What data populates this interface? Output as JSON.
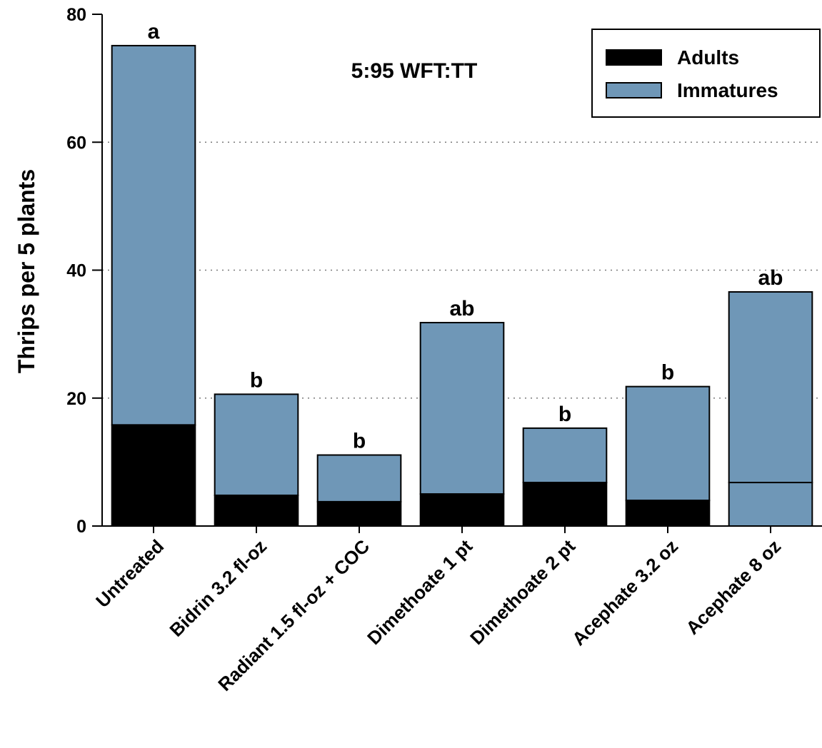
{
  "chart_data": {
    "type": "bar",
    "stacked": true,
    "categories": [
      "Untreated",
      "Bidrin 3.2 fl-oz",
      "Radiant 1.5 fl-oz + COC",
      "Dimethoate 1 pt",
      "Dimethoate 2 pt",
      "Acephate 3.2 oz",
      "Acephate 8 oz"
    ],
    "series": [
      {
        "name": "Adults",
        "values": [
          15.8,
          4.8,
          3.8,
          5.0,
          6.8,
          4.0,
          6.8
        ]
      },
      {
        "name": "Immatures",
        "values": [
          59.3,
          15.8,
          7.3,
          26.8,
          8.5,
          17.8,
          29.8
        ]
      }
    ],
    "totals": [
      75.1,
      20.6,
      11.1,
      31.8,
      15.3,
      21.8,
      36.6
    ],
    "significance_letters": [
      "a",
      "b",
      "b",
      "ab",
      "b",
      "b",
      "ab"
    ],
    "annotation": "5:95 WFT:TT",
    "title": "",
    "xlabel": "",
    "ylabel": "Thrips per 5 plants",
    "ylim": [
      0,
      80
    ],
    "yticks": [
      0,
      20,
      40,
      60,
      80
    ],
    "grid": "horizontal dotted at 20, 40, 60",
    "legend_position": "top-right",
    "colors": {
      "Adults": "#000000",
      "Immatures": "#6f97b7",
      "grid": "#7a7a7a"
    }
  }
}
